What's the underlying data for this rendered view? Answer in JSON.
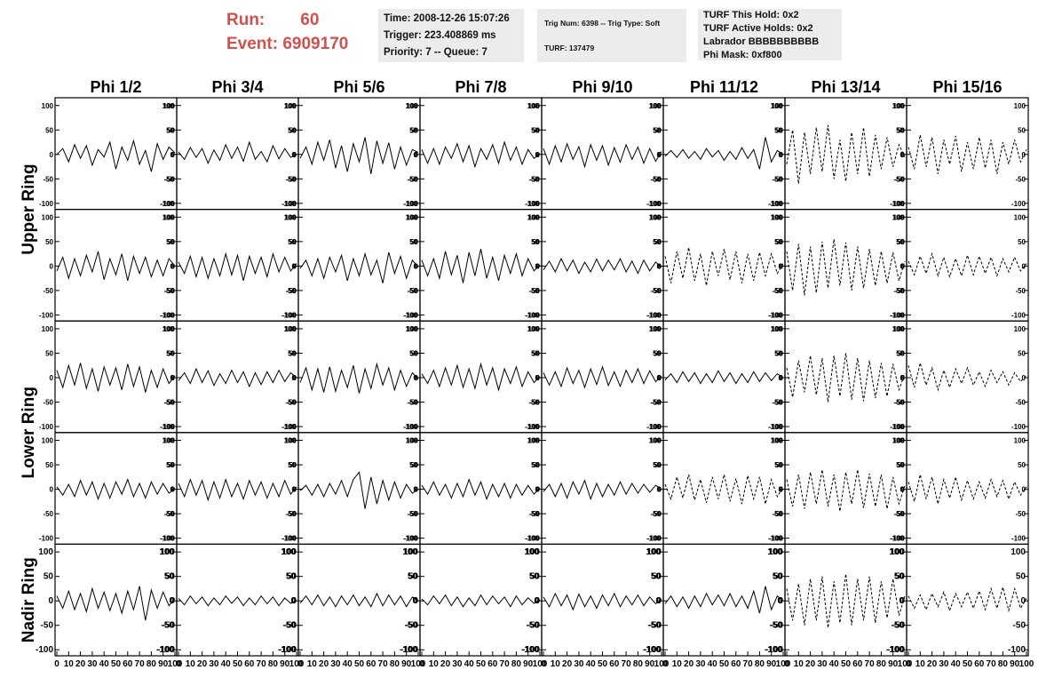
{
  "header": {
    "run_label": "Run:",
    "run": "60",
    "event_label": "Event:",
    "event": "6909170",
    "info1": [
      "Time: 2008-12-26 15:07:26",
      "Trigger: 223.408869 ms",
      "Priority: 7 -- Queue: 7"
    ],
    "info2": [
      "Trig Num: 6398 -- Trig Type: Soft",
      "TURF: 137479"
    ],
    "info3": [
      "TURF This Hold: 0x2",
      "TURF Active Holds: 0x2",
      "Labrador BBBBBBBBBB",
      "Phi Mask: 0xf800"
    ]
  },
  "chart_data": {
    "type": "line",
    "columns": [
      "Phi 1/2",
      "Phi 3/4",
      "Phi 5/6",
      "Phi 7/8",
      "Phi 9/10",
      "Phi 11/12",
      "Phi 13/14",
      "Phi 15/16"
    ],
    "row_labels": [
      "Upper Ring",
      "Lower Ring",
      "Nadir Ring"
    ],
    "xlim": [
      0,
      100
    ],
    "xticks": [
      0,
      10,
      20,
      30,
      40,
      50,
      60,
      70,
      80,
      90,
      100
    ],
    "ylim": [
      -105,
      105
    ],
    "yticks": [
      100,
      50,
      0,
      -50,
      -100
    ],
    "color": "#000000",
    "x": [
      0,
      5,
      10,
      15,
      20,
      25,
      30,
      35,
      40,
      45,
      50,
      55,
      60,
      65,
      70,
      75,
      80,
      85,
      90,
      95,
      100
    ],
    "panels": [
      [
        {
          "dashed": false,
          "values": [
            0,
            12,
            -15,
            20,
            -8,
            18,
            -22,
            10,
            -5,
            25,
            -30,
            15,
            -12,
            28,
            -20,
            8,
            -35,
            22,
            -10,
            15,
            3
          ]
        },
        {
          "dashed": false,
          "values": [
            5,
            -10,
            14,
            -6,
            12,
            -18,
            9,
            -12,
            20,
            -8,
            15,
            -14,
            25,
            -10,
            6,
            -15,
            18,
            -9,
            12,
            -6,
            0
          ]
        },
        {
          "dashed": false,
          "values": [
            -8,
            15,
            -20,
            25,
            -12,
            30,
            -28,
            18,
            -35,
            22,
            -15,
            35,
            -40,
            28,
            -18,
            24,
            -30,
            15,
            -22,
            10,
            4
          ]
        },
        {
          "dashed": false,
          "values": [
            10,
            -18,
            12,
            -20,
            15,
            -8,
            22,
            -15,
            18,
            -25,
            12,
            -10,
            20,
            -18,
            25,
            -12,
            15,
            -20,
            10,
            -8,
            2
          ]
        },
        {
          "dashed": false,
          "values": [
            12,
            -20,
            18,
            -15,
            22,
            -10,
            16,
            -25,
            20,
            -12,
            18,
            -22,
            14,
            -16,
            20,
            -10,
            15,
            -18,
            12,
            -14,
            6
          ]
        },
        {
          "dashed": false,
          "values": [
            -4,
            8,
            -6,
            10,
            -8,
            6,
            -10,
            12,
            -5,
            8,
            -12,
            6,
            -10,
            14,
            -8,
            10,
            -30,
            35,
            -15,
            8,
            0
          ]
        },
        {
          "dashed": true,
          "values": [
            -20,
            50,
            -60,
            45,
            -40,
            55,
            -35,
            60,
            -50,
            30,
            -55,
            45,
            -40,
            55,
            -45,
            40,
            -30,
            35,
            -25,
            20,
            -5
          ]
        },
        {
          "dashed": true,
          "values": [
            15,
            -30,
            40,
            -25,
            35,
            -40,
            30,
            -20,
            38,
            -35,
            25,
            -30,
            35,
            -28,
            30,
            -40,
            25,
            -20,
            30,
            -15,
            10
          ]
        }
      ],
      [
        {
          "dashed": false,
          "values": [
            -10,
            18,
            -25,
            15,
            -20,
            22,
            -12,
            30,
            -28,
            15,
            -18,
            25,
            -30,
            20,
            -15,
            18,
            -22,
            12,
            -20,
            15,
            0
          ]
        },
        {
          "dashed": false,
          "values": [
            8,
            -15,
            20,
            -22,
            18,
            -25,
            15,
            -20,
            25,
            -18,
            22,
            -30,
            20,
            -15,
            18,
            -22,
            25,
            -12,
            18,
            -10,
            5
          ]
        },
        {
          "dashed": false,
          "values": [
            -5,
            12,
            -20,
            15,
            -25,
            18,
            -12,
            22,
            -30,
            15,
            -20,
            25,
            -18,
            12,
            -35,
            28,
            -15,
            20,
            -25,
            12,
            -2
          ]
        },
        {
          "dashed": false,
          "values": [
            12,
            -20,
            15,
            -25,
            30,
            -18,
            22,
            -35,
            28,
            -20,
            35,
            -25,
            18,
            -30,
            22,
            -15,
            25,
            -20,
            15,
            -10,
            3
          ]
        },
        {
          "dashed": false,
          "values": [
            -8,
            10,
            -12,
            15,
            -10,
            12,
            -15,
            8,
            -12,
            14,
            -10,
            12,
            -8,
            15,
            -12,
            10,
            -15,
            12,
            -10,
            8,
            -2
          ]
        },
        {
          "dashed": true,
          "values": [
            20,
            -35,
            30,
            -25,
            38,
            -30,
            25,
            -40,
            30,
            -20,
            35,
            -28,
            30,
            -35,
            25,
            -30,
            28,
            -20,
            25,
            -15,
            5
          ]
        },
        {
          "dashed": true,
          "values": [
            30,
            -50,
            45,
            -60,
            40,
            -55,
            50,
            -45,
            55,
            -40,
            48,
            -50,
            40,
            -45,
            35,
            -40,
            30,
            -35,
            28,
            -30,
            10
          ]
        },
        {
          "dashed": true,
          "values": [
            10,
            -18,
            20,
            -15,
            25,
            -20,
            18,
            -22,
            15,
            -20,
            22,
            -18,
            20,
            -15,
            18,
            -20,
            15,
            -12,
            18,
            -10,
            5
          ]
        }
      ],
      [
        {
          "dashed": false,
          "values": [
            15,
            -20,
            25,
            -15,
            30,
            -22,
            18,
            -28,
            22,
            -15,
            20,
            -25,
            28,
            -18,
            22,
            -30,
            15,
            -20,
            18,
            -12,
            4
          ]
        },
        {
          "dashed": false,
          "values": [
            -6,
            10,
            -12,
            18,
            -10,
            14,
            -16,
            8,
            -12,
            15,
            -10,
            12,
            -18,
            10,
            -14,
            12,
            -10,
            15,
            -8,
            10,
            0
          ]
        },
        {
          "dashed": false,
          "values": [
            -10,
            20,
            -25,
            18,
            -30,
            22,
            -28,
            15,
            -20,
            25,
            -32,
            18,
            -22,
            28,
            -15,
            20,
            -25,
            15,
            -18,
            10,
            -3
          ]
        },
        {
          "dashed": false,
          "values": [
            8,
            -12,
            15,
            -18,
            20,
            -15,
            25,
            -20,
            18,
            -22,
            28,
            -15,
            20,
            -25,
            18,
            -12,
            22,
            -18,
            12,
            -10,
            2
          ]
        },
        {
          "dashed": false,
          "values": [
            10,
            -15,
            12,
            -18,
            20,
            -12,
            15,
            -20,
            18,
            -14,
            22,
            -16,
            12,
            -18,
            15,
            -10,
            18,
            -12,
            14,
            -8,
            3
          ]
        },
        {
          "dashed": false,
          "values": [
            -5,
            8,
            -10,
            12,
            -8,
            10,
            -12,
            8,
            -10,
            14,
            -8,
            10,
            -12,
            8,
            -10,
            12,
            -8,
            10,
            -6,
            8,
            0
          ]
        },
        {
          "dashed": true,
          "values": [
            20,
            -40,
            35,
            -30,
            45,
            -35,
            40,
            -50,
            45,
            -38,
            50,
            -45,
            40,
            -48,
            35,
            -42,
            30,
            -38,
            28,
            -25,
            8
          ]
        },
        {
          "dashed": true,
          "values": [
            25,
            -20,
            30,
            -15,
            20,
            -25,
            15,
            -20,
            18,
            -12,
            20,
            -15,
            12,
            -18,
            15,
            -10,
            12,
            -15,
            10,
            -8,
            5
          ]
        }
      ],
      [
        {
          "dashed": false,
          "values": [
            5,
            -12,
            10,
            -15,
            18,
            -12,
            15,
            -20,
            12,
            -18,
            15,
            -10,
            20,
            -15,
            12,
            -18,
            15,
            -10,
            12,
            -8,
            2
          ]
        },
        {
          "dashed": false,
          "values": [
            12,
            -15,
            20,
            -12,
            18,
            -22,
            15,
            -18,
            20,
            -15,
            12,
            -20,
            18,
            -12,
            15,
            -18,
            12,
            -15,
            18,
            -10,
            5
          ]
        },
        {
          "dashed": false,
          "values": [
            -3,
            8,
            -12,
            10,
            -15,
            12,
            -10,
            18,
            -15,
            20,
            35,
            -40,
            25,
            -30,
            18,
            -22,
            15,
            -18,
            10,
            -8,
            0
          ]
        },
        {
          "dashed": false,
          "values": [
            8,
            -10,
            15,
            -12,
            10,
            -18,
            12,
            -15,
            20,
            -12,
            15,
            -20,
            10,
            -15,
            12,
            -18,
            10,
            -12,
            8,
            -10,
            3
          ]
        },
        {
          "dashed": false,
          "values": [
            -5,
            10,
            -15,
            12,
            -18,
            15,
            -10,
            18,
            -20,
            12,
            -15,
            10,
            -12,
            15,
            -10,
            12,
            -8,
            10,
            -6,
            8,
            0
          ]
        },
        {
          "dashed": true,
          "values": [
            10,
            -20,
            25,
            -18,
            30,
            -22,
            20,
            -28,
            25,
            -20,
            30,
            -25,
            22,
            -30,
            28,
            -20,
            25,
            -30,
            20,
            -15,
            5
          ]
        },
        {
          "dashed": true,
          "values": [
            20,
            -35,
            30,
            -40,
            35,
            -30,
            40,
            -35,
            30,
            -45,
            35,
            -30,
            40,
            -38,
            32,
            -35,
            30,
            -40,
            25,
            -30,
            8
          ]
        },
        {
          "dashed": true,
          "values": [
            15,
            -25,
            30,
            -20,
            25,
            -30,
            20,
            -18,
            25,
            -22,
            18,
            -20,
            15,
            -18,
            20,
            -15,
            18,
            -20,
            15,
            -12,
            5
          ]
        }
      ],
      [
        {
          "dashed": false,
          "values": [
            10,
            -15,
            20,
            -18,
            15,
            -22,
            25,
            -15,
            18,
            -20,
            15,
            -25,
            20,
            -18,
            30,
            -40,
            22,
            -15,
            18,
            -10,
            5
          ]
        },
        {
          "dashed": false,
          "values": [
            5,
            -8,
            10,
            -6,
            8,
            -10,
            6,
            -8,
            10,
            -5,
            8,
            -10,
            6,
            -8,
            10,
            -6,
            8,
            -10,
            6,
            -5,
            0
          ]
        },
        {
          "dashed": false,
          "values": [
            -5,
            10,
            -8,
            12,
            -10,
            8,
            -12,
            10,
            -8,
            12,
            -10,
            8,
            -12,
            15,
            -10,
            12,
            -8,
            10,
            -12,
            8,
            0
          ]
        },
        {
          "dashed": false,
          "values": [
            4,
            -8,
            10,
            -6,
            12,
            -10,
            8,
            -12,
            6,
            -10,
            12,
            -8,
            10,
            -6,
            8,
            -12,
            10,
            -8,
            6,
            -5,
            2
          ]
        },
        {
          "dashed": false,
          "values": [
            8,
            -12,
            15,
            -10,
            12,
            -18,
            14,
            -12,
            10,
            -15,
            12,
            -10,
            15,
            -12,
            10,
            -8,
            12,
            -10,
            8,
            -6,
            3
          ]
        },
        {
          "dashed": false,
          "values": [
            -6,
            10,
            -12,
            8,
            -15,
            10,
            -12,
            15,
            -8,
            12,
            -10,
            15,
            -12,
            10,
            -15,
            20,
            -25,
            30,
            -18,
            10,
            0
          ]
        },
        {
          "dashed": true,
          "values": [
            25,
            -40,
            35,
            -50,
            45,
            -40,
            50,
            -55,
            40,
            -45,
            55,
            -50,
            45,
            -40,
            50,
            -45,
            40,
            -35,
            45,
            -30,
            10
          ]
        },
        {
          "dashed": true,
          "values": [
            10,
            -15,
            12,
            -18,
            15,
            -12,
            18,
            -20,
            15,
            -12,
            18,
            -15,
            20,
            -18,
            25,
            -15,
            28,
            -20,
            25,
            -15,
            5
          ]
        }
      ]
    ]
  }
}
